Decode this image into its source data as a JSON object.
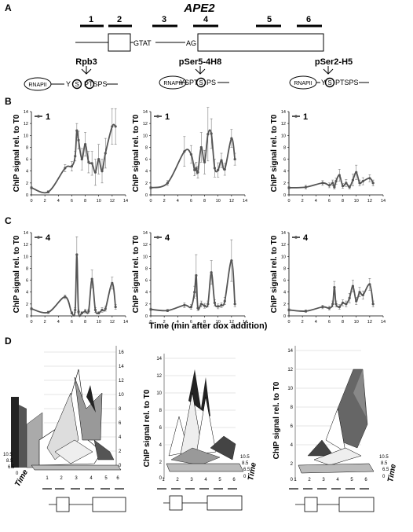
{
  "panel_labels": [
    "A",
    "B",
    "C",
    "D"
  ],
  "gene": {
    "name": "APE2",
    "amplicons": [
      "1",
      "2",
      "3",
      "4",
      "5",
      "6"
    ],
    "motif_left": "GTAT",
    "motif_right": "AG"
  },
  "antibodies": [
    {
      "name": "Rpb3",
      "polymerase": "RNAPII",
      "ctd_left": "Y",
      "ctd_right": "PTSPS",
      "ctd_full": "YSPTSPS"
    },
    {
      "name": "pSer5-4H8",
      "polymerase": "RNAPII",
      "ctd_left": "YSPT",
      "ctd_right": "PS",
      "ctd_full": "YSPTSPS"
    },
    {
      "name": "pSer2-H5",
      "polymerase": "RNAPII",
      "ctd_left": "Y",
      "ctd_right": "PTSPS",
      "ctd_full": "YSPTSPS"
    }
  ],
  "axis": {
    "ylabel": "ChIP signal rel. to T0",
    "xlabel": "Time (min after dox addition)",
    "xticks": [
      "0",
      "2",
      "4",
      "6",
      "8",
      "10",
      "12",
      "14"
    ],
    "yticks": [
      "0",
      "2",
      "4",
      "6",
      "8",
      "10",
      "12",
      "14"
    ]
  },
  "chart_data": [
    {
      "type": "line",
      "panel": "B",
      "antibody": "Rpb3",
      "legend": "1",
      "xlim": [
        0,
        14
      ],
      "ylim": [
        0,
        14
      ],
      "x": [
        0,
        2.5,
        5,
        6,
        6.5,
        6.75,
        7,
        7.5,
        8,
        8.5,
        9,
        9.5,
        10,
        10.5,
        11,
        12,
        12.5
      ],
      "y": [
        1.2,
        0.5,
        4.5,
        4.8,
        6.5,
        10.8,
        9.2,
        6.0,
        8.5,
        5.5,
        5.3,
        3.8,
        6.0,
        4.0,
        7.0,
        11.5,
        11.5
      ],
      "err": [
        0.2,
        0.2,
        0.6,
        0.8,
        0.8,
        1.2,
        1.5,
        1.8,
        2.0,
        1.8,
        2.0,
        2.2,
        2.5,
        2.0,
        2.5,
        3.0,
        3.0
      ]
    },
    {
      "type": "line",
      "panel": "B",
      "antibody": "pSer5-4H8",
      "legend": "1",
      "xlim": [
        0,
        14
      ],
      "ylim": [
        0,
        14
      ],
      "x": [
        0,
        2.5,
        5,
        6,
        6.5,
        6.75,
        7,
        7.5,
        8,
        8.5,
        9,
        9.5,
        10,
        10.5,
        11,
        12,
        12.5
      ],
      "y": [
        1.2,
        2.0,
        7.3,
        6.8,
        4.2,
        4.5,
        3.8,
        8.0,
        5.5,
        10.2,
        10.3,
        4.5,
        4.2,
        5.8,
        4.3,
        9.5,
        6.0
      ],
      "err": [
        0.2,
        0.4,
        2.5,
        1.5,
        1.0,
        1.0,
        1.0,
        2.5,
        2.0,
        4.5,
        2.5,
        1.5,
        1.2,
        1.2,
        1.0,
        1.5,
        1.0
      ]
    },
    {
      "type": "line",
      "panel": "B",
      "antibody": "pSer2-H5",
      "legend": "1",
      "xlim": [
        0,
        14
      ],
      "ylim": [
        0,
        14
      ],
      "x": [
        0,
        2.5,
        5,
        6,
        6.5,
        6.75,
        7,
        7.5,
        8,
        8.5,
        9,
        9.5,
        10,
        10.5,
        11,
        12,
        12.5
      ],
      "y": [
        1.2,
        1.3,
        2.0,
        1.6,
        2.0,
        1.3,
        2.3,
        3.3,
        1.5,
        2.0,
        1.3,
        2.5,
        3.8,
        2.0,
        2.3,
        2.8,
        2.0
      ],
      "err": [
        0.2,
        0.3,
        0.4,
        0.4,
        0.5,
        0.3,
        0.5,
        1.0,
        0.4,
        0.6,
        0.3,
        1.0,
        1.2,
        0.5,
        0.6,
        0.6,
        0.5
      ]
    },
    {
      "type": "line",
      "panel": "C",
      "antibody": "Rpb3",
      "legend": "4",
      "xlim": [
        0,
        14
      ],
      "ylim": [
        0,
        14
      ],
      "x": [
        0,
        2.5,
        5,
        6,
        6.5,
        6.75,
        7,
        7.5,
        8,
        8.5,
        9,
        9.5,
        10,
        10.5,
        11,
        12,
        12.5
      ],
      "y": [
        1.2,
        0.6,
        3.2,
        0.5,
        1.0,
        10.3,
        0.7,
        0.5,
        0.8,
        0.8,
        6.2,
        1.0,
        0.5,
        1.0,
        1.2,
        5.5,
        1.5
      ],
      "err": [
        0.2,
        0.2,
        0.3,
        0.2,
        0.4,
        3.0,
        0.3,
        0.2,
        0.3,
        0.3,
        1.5,
        0.4,
        0.2,
        0.4,
        0.4,
        1.0,
        0.4
      ]
    },
    {
      "type": "line",
      "panel": "C",
      "antibody": "pSer5-4H8",
      "legend": "4",
      "xlim": [
        0,
        14
      ],
      "ylim": [
        0,
        14
      ],
      "x": [
        0,
        2.5,
        5,
        6,
        6.5,
        6.75,
        7,
        7.5,
        8,
        8.5,
        9,
        9.5,
        10,
        10.5,
        11,
        12,
        12.5
      ],
      "y": [
        1.1,
        0.9,
        1.8,
        1.5,
        4.0,
        6.8,
        1.3,
        2.0,
        1.7,
        2.0,
        7.3,
        2.2,
        1.6,
        1.8,
        2.5,
        9.3,
        2.0
      ],
      "err": [
        0.2,
        0.2,
        0.4,
        0.4,
        1.0,
        3.5,
        0.4,
        0.5,
        0.4,
        0.5,
        2.0,
        0.5,
        0.4,
        0.4,
        0.6,
        3.5,
        0.5
      ]
    },
    {
      "type": "line",
      "panel": "C",
      "antibody": "pSer2-H5",
      "legend": "4",
      "xlim": [
        0,
        14
      ],
      "ylim": [
        0,
        14
      ],
      "x": [
        0,
        2.5,
        5,
        6,
        6.5,
        6.75,
        7,
        7.5,
        8,
        8.5,
        9,
        9.5,
        10,
        10.5,
        11,
        12,
        12.5
      ],
      "y": [
        1.0,
        0.8,
        1.5,
        1.3,
        2.0,
        4.8,
        2.0,
        1.5,
        2.2,
        2.0,
        3.0,
        5.0,
        2.5,
        4.0,
        3.5,
        5.3,
        2.0
      ],
      "err": [
        0.2,
        0.2,
        0.3,
        0.3,
        0.5,
        1.0,
        0.5,
        0.4,
        0.5,
        0.5,
        0.8,
        1.0,
        0.6,
        0.8,
        0.7,
        1.0,
        0.5
      ]
    }
  ],
  "panel_d": {
    "zlabel": "ChIP signal rel. to T0",
    "depth_label": "Time",
    "depth_ticks": [
      "10.5",
      "8.5",
      "6.5",
      "0"
    ],
    "zticks": [
      "0",
      "2",
      "4",
      "6",
      "8",
      "10",
      "12",
      "14",
      "16"
    ],
    "amplicon_ticks": [
      "1",
      "2",
      "3",
      "4",
      "5",
      "6"
    ]
  }
}
